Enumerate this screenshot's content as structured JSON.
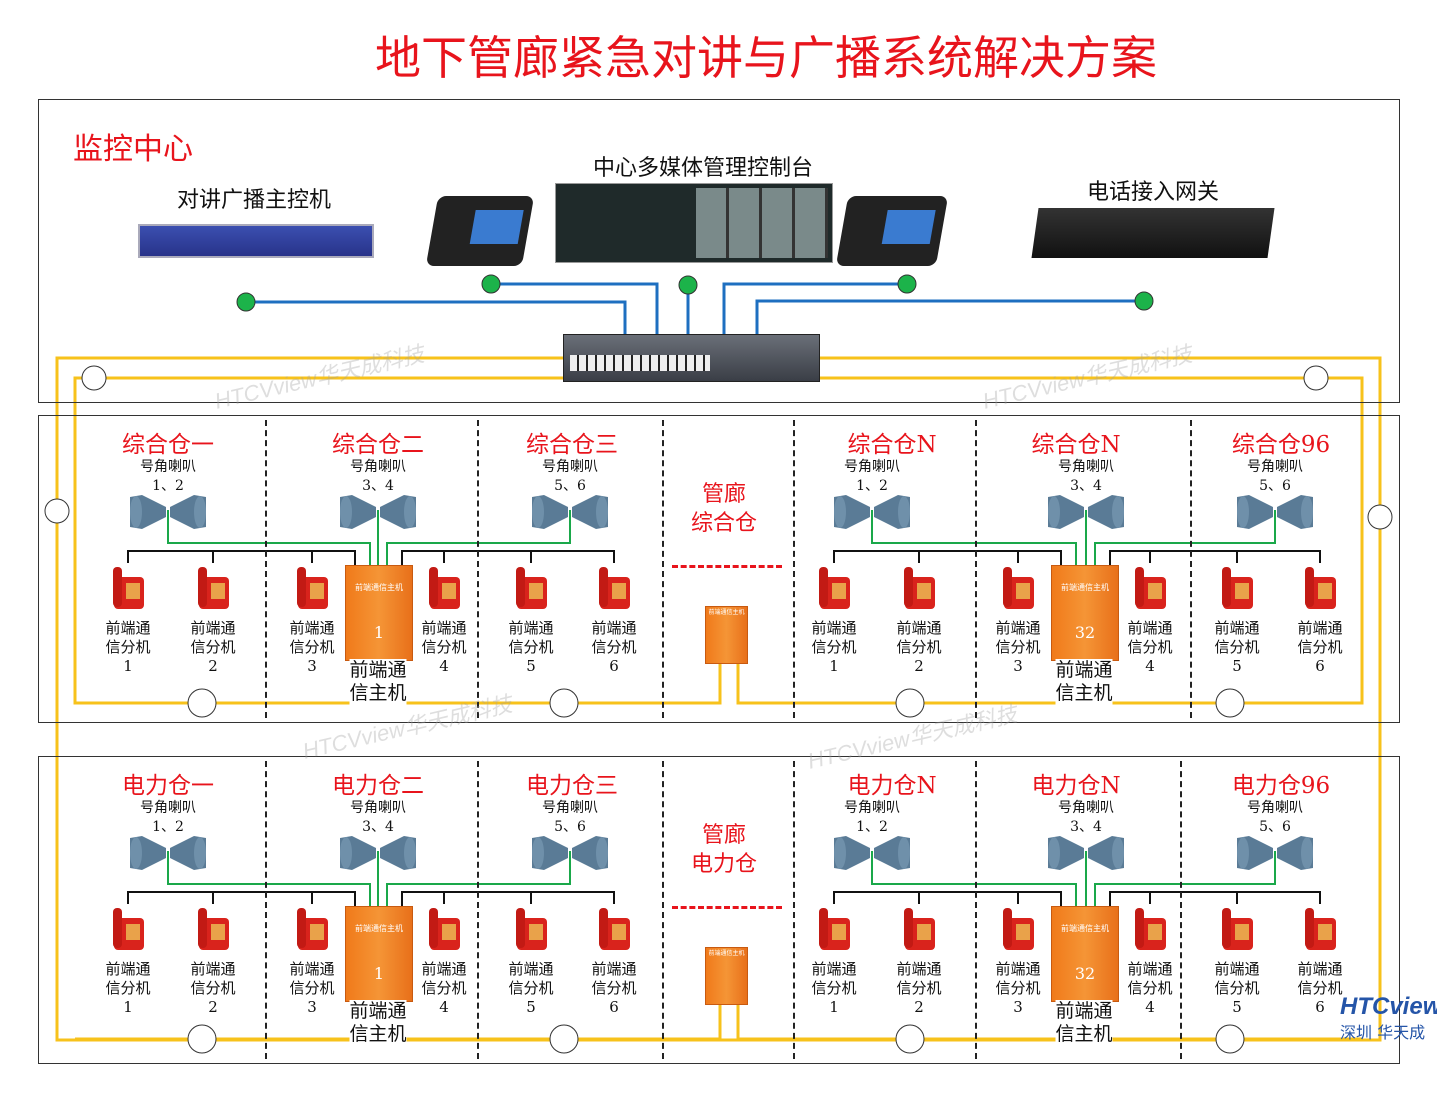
{
  "title": "地下管廊紧急对讲与广播系统解决方案",
  "monitor": {
    "label": "监控中心",
    "master_controller": "对讲广播主控机",
    "console": "中心多媒体管理控制台",
    "gateway": "电话接入网关"
  },
  "watermark": "HTCVview华天成科技",
  "phone_label": [
    "前端通",
    "信分机"
  ],
  "host_label": [
    "前端通",
    "信主机"
  ],
  "host_plate": "前端通信主机",
  "speaker_label": "号角喇叭",
  "rows": [
    {
      "middle": [
        "管廊",
        "综合仓"
      ],
      "cells": [
        {
          "name": "综合仓一",
          "speakers": "1、2",
          "phones": [
            "1",
            "2"
          ]
        },
        {
          "name": "综合仓二",
          "speakers": "3、4",
          "phones": [
            "3",
            "4"
          ],
          "host": "1"
        },
        {
          "name": "综合仓三",
          "speakers": "5、6",
          "phones": [
            "5",
            "6"
          ]
        },
        {
          "name": "综合仓N",
          "speakers": "1、2",
          "phones": [
            "1",
            "2"
          ]
        },
        {
          "name": "综合仓N",
          "speakers": "3、4",
          "phones": [
            "3",
            "4"
          ],
          "host": "32"
        },
        {
          "name": "综合仓96",
          "speakers": "5、6",
          "phones": [
            "5",
            "6"
          ]
        }
      ]
    },
    {
      "middle": [
        "管廊",
        "电力仓"
      ],
      "cells": [
        {
          "name": "电力仓一",
          "speakers": "1、2",
          "phones": [
            "1",
            "2"
          ]
        },
        {
          "name": "电力仓二",
          "speakers": "3、4",
          "phones": [
            "3",
            "4"
          ],
          "host": "1"
        },
        {
          "name": "电力仓三",
          "speakers": "5、6",
          "phones": [
            "5",
            "6"
          ]
        },
        {
          "name": "电力仓N",
          "speakers": "1、2",
          "phones": [
            "1",
            "2"
          ]
        },
        {
          "name": "电力仓N",
          "speakers": "3、4",
          "phones": [
            "3",
            "4"
          ],
          "host": "32"
        },
        {
          "name": "电力仓96",
          "speakers": "5、6",
          "phones": [
            "5",
            "6"
          ]
        }
      ]
    }
  ],
  "logo": {
    "brand": "HTCview",
    "sub": "深圳 华天成"
  },
  "colors": {
    "title": "#e8141c",
    "yellow_bus": "#f7c21b",
    "green_line": "#1aa84a",
    "blue_line": "#1e6fc0",
    "host": "#f07a1a",
    "phone": "#d9231c"
  }
}
